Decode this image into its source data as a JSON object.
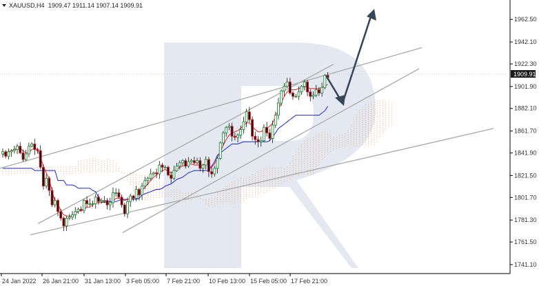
{
  "header": {
    "symbol": "XAUUSD,H4",
    "ohlc": "1909.47 1911.14 1907.14 1909.91"
  },
  "price_badge": "1909.91",
  "colors": {
    "bull": "#1f8f3a",
    "bear": "#e0202a",
    "tenkan": "#e8202a",
    "kijun": "#1a24d8",
    "cloud": "#f0a060",
    "channel": "#a8a8a8",
    "arrow": "#36475a",
    "badge": "#1a1a1a",
    "watermark": "#e4e9f1"
  },
  "chart_data": {
    "type": "candlestick",
    "y_axis": {
      "range": [
        1733,
        1980
      ],
      "ticks": [
        "1962.50",
        "1942.10",
        "1922.30",
        "1901.90",
        "1882.10",
        "1861.70",
        "1841.90",
        "1821.50",
        "1801.70",
        "1781.30",
        "1761.50",
        "1741.10"
      ]
    },
    "x_axis": {
      "ticks": [
        "24 Jan 2022",
        "26 Jan 21:00",
        "31 Jan 13:00",
        "3 Feb 05:00",
        "7 Feb 21:00",
        "10 Feb 13:00",
        "15 Feb 05:00",
        "17 Feb 21:00"
      ]
    },
    "close_series": [
      1843,
      1839,
      1843,
      1844,
      1845,
      1848,
      1842,
      1836,
      1841,
      1848,
      1850,
      1845,
      1844,
      1829,
      1812,
      1819,
      1808,
      1795,
      1799,
      1789,
      1783,
      1776,
      1783,
      1784,
      1786,
      1789,
      1791,
      1790,
      1799,
      1796,
      1796,
      1796,
      1802,
      1798,
      1799,
      1799,
      1795,
      1797,
      1806,
      1806,
      1802,
      1795,
      1787,
      1798,
      1803,
      1801,
      1809,
      1804,
      1812,
      1817,
      1819,
      1823,
      1824,
      1823,
      1831,
      1829,
      1829,
      1822,
      1819,
      1826,
      1830,
      1833,
      1835,
      1830,
      1834,
      1835,
      1833,
      1835,
      1828,
      1831,
      1836,
      1825,
      1823,
      1828,
      1837,
      1851,
      1860,
      1865,
      1866,
      1857,
      1856,
      1858,
      1863,
      1870,
      1879,
      1872,
      1857,
      1854,
      1852,
      1853,
      1865,
      1860,
      1855,
      1867,
      1876,
      1887,
      1898,
      1902,
      1906,
      1896,
      1893,
      1893,
      1897,
      1902,
      1906,
      1897,
      1893,
      1894,
      1899,
      1896,
      1901,
      1912,
      1910
    ],
    "tenkan_series": [
      1840,
      1842,
      1843,
      1844,
      1845,
      1846,
      1846,
      1844,
      1842,
      1842,
      1845,
      1846,
      1845,
      1838,
      1830,
      1824,
      1818,
      1808,
      1798,
      1796,
      1790,
      1786,
      1785,
      1785,
      1785,
      1787,
      1789,
      1790,
      1791,
      1793,
      1793,
      1795,
      1797,
      1797,
      1797,
      1798,
      1797,
      1796,
      1798,
      1801,
      1801,
      1800,
      1799,
      1800,
      1800,
      1801,
      1803,
      1805,
      1808,
      1811,
      1814,
      1817,
      1820,
      1822,
      1824,
      1826,
      1827,
      1825,
      1824,
      1825,
      1827,
      1829,
      1830,
      1831,
      1832,
      1832,
      1831,
      1831,
      1831,
      1831,
      1832,
      1830,
      1829,
      1832,
      1838,
      1843,
      1849,
      1854,
      1858,
      1860,
      1861,
      1862,
      1864,
      1867,
      1869,
      1869,
      1866,
      1863,
      1861,
      1861,
      1863,
      1864,
      1866,
      1869,
      1875,
      1881,
      1887,
      1893,
      1897,
      1899,
      1899,
      1899,
      1900,
      1901,
      1902,
      1901,
      1900,
      1900,
      1900,
      1900,
      1901,
      1902,
      1904
    ],
    "kijun_series": [
      1828,
      1828,
      1828,
      1828,
      1828,
      1828,
      1828,
      1828,
      1828,
      1828,
      1828,
      1826,
      1826,
      1826,
      1826,
      1826,
      1826,
      1826,
      1826,
      1817,
      1817,
      1817,
      1813,
      1813,
      1813,
      1812,
      1810,
      1810,
      1810,
      1810,
      1810,
      1808,
      1807,
      1802,
      1798,
      1797,
      1798,
      1798,
      1798,
      1798,
      1799,
      1800,
      1800,
      1800,
      1800,
      1800,
      1800,
      1801,
      1804,
      1805,
      1806,
      1807,
      1808,
      1809,
      1809,
      1810,
      1812,
      1813,
      1814,
      1816,
      1818,
      1819,
      1820,
      1822,
      1824,
      1825,
      1826,
      1826,
      1826,
      1826,
      1826,
      1826,
      1830,
      1834,
      1840,
      1842,
      1844,
      1846,
      1848,
      1850,
      1850,
      1850,
      1851,
      1852,
      1852,
      1852,
      1852,
      1852,
      1852,
      1852,
      1852,
      1852,
      1853,
      1856,
      1860,
      1864,
      1866,
      1868,
      1870,
      1872,
      1874,
      1876,
      1876,
      1876,
      1876,
      1876,
      1876,
      1876,
      1876,
      1876,
      1878,
      1880,
      1884
    ]
  }
}
